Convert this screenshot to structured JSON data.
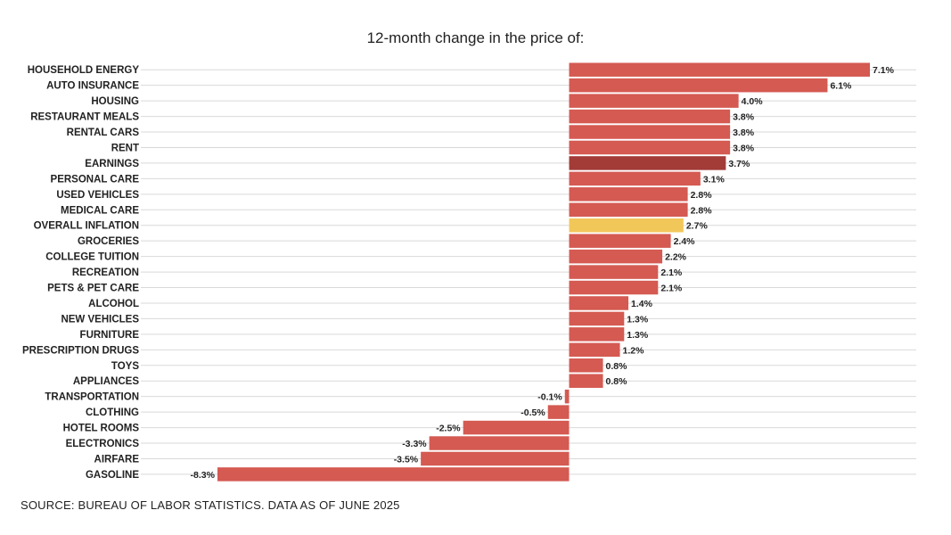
{
  "chart_data": {
    "type": "bar",
    "orientation": "horizontal",
    "title": "12-month change in the price of:",
    "source": "SOURCE: BUREAU OF LABOR STATISTICS. DATA AS OF JUNE 2025",
    "categories": [
      "HOUSEHOLD ENERGY",
      "AUTO INSURANCE",
      "HOUSING",
      "RESTAURANT MEALS",
      "RENTAL CARS",
      "RENT",
      "EARNINGS",
      "PERSONAL CARE",
      "USED VEHICLES",
      "MEDICAL CARE",
      "OVERALL INFLATION",
      "GROCERIES",
      "COLLEGE TUITION",
      "RECREATION",
      "PETS & PET CARE",
      "ALCOHOL",
      "NEW VEHICLES",
      "FURNITURE",
      "PRESCRIPTION DRUGS",
      "TOYS",
      "APPLIANCES",
      "TRANSPORTATION",
      "CLOTHING",
      "HOTEL ROOMS",
      "ELECTRONICS",
      "AIRFARE",
      "GASOLINE"
    ],
    "values": [
      7.1,
      6.1,
      4.0,
      3.8,
      3.8,
      3.8,
      3.7,
      3.1,
      2.8,
      2.8,
      2.7,
      2.4,
      2.2,
      2.1,
      2.1,
      1.4,
      1.3,
      1.3,
      1.2,
      0.8,
      0.8,
      -0.1,
      -0.5,
      -2.5,
      -3.3,
      -3.5,
      -8.3
    ],
    "labels": [
      "7.1%",
      "6.1%",
      "4.0%",
      "3.8%",
      "3.8%",
      "3.8%",
      "3.7%",
      "3.1%",
      "2.8%",
      "2.8%",
      "2.7%",
      "2.4%",
      "2.2%",
      "2.1%",
      "2.1%",
      "1.4%",
      "1.3%",
      "1.3%",
      "1.2%",
      "0.8%",
      "0.8%",
      "-0.1%",
      "-0.5%",
      "-2.5%",
      "-3.3%",
      "-3.5%",
      "-8.3%"
    ],
    "xlim": [
      -8.3,
      7.1
    ],
    "highlight": {
      "EARNINGS": "#a33b37",
      "OVERALL INFLATION": "#f2c75a"
    },
    "colors": {
      "bar": "#d45a52",
      "gridline": "#d9d9d9"
    },
    "grid": true,
    "legend": "none"
  }
}
